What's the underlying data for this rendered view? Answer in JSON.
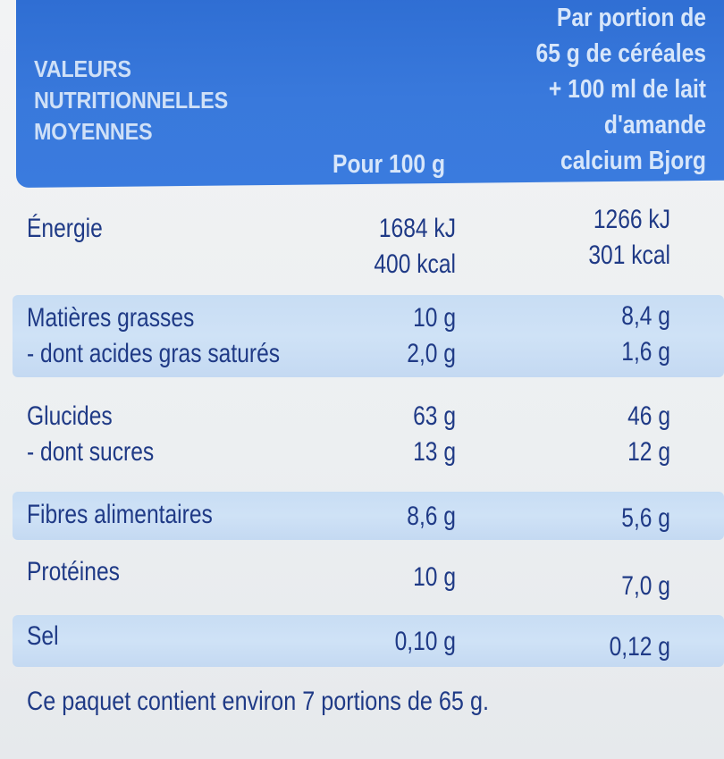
{
  "header": {
    "title": "VALEURS NUTRITIONNELLES MOYENNES",
    "col1": "Pour 100 g",
    "col2": "Par portion de\n65 g de céréales\n+ 100 ml de lait\nd'amande\ncalcium Bjorg"
  },
  "rows": [
    {
      "name": "Énergie",
      "v1": "1684 kJ\n400 kcal",
      "v2": "1266 kJ\n301 kcal"
    },
    {
      "name": "Matières grasses\n- dont acides gras saturés",
      "v1": "10 g\n2,0 g",
      "v2": "8,4 g\n1,6 g"
    },
    {
      "name": "Glucides\n- dont sucres",
      "v1": "63 g\n13 g",
      "v2": "46 g\n12 g"
    },
    {
      "name": "Fibres alimentaires",
      "v1": "8,6 g",
      "v2": "5,6 g"
    },
    {
      "name": "Protéines",
      "v1": "10 g",
      "v2": "7,0 g"
    },
    {
      "name": "Sel",
      "v1": "0,10 g",
      "v2": "0,12 g"
    }
  ],
  "footer": "Ce paquet contient environ 7 portions de 65 g.",
  "colors": {
    "header_blue": "#3a7bde",
    "text_blue": "#1f3a86",
    "shade_blue": "#cfe2f6"
  }
}
